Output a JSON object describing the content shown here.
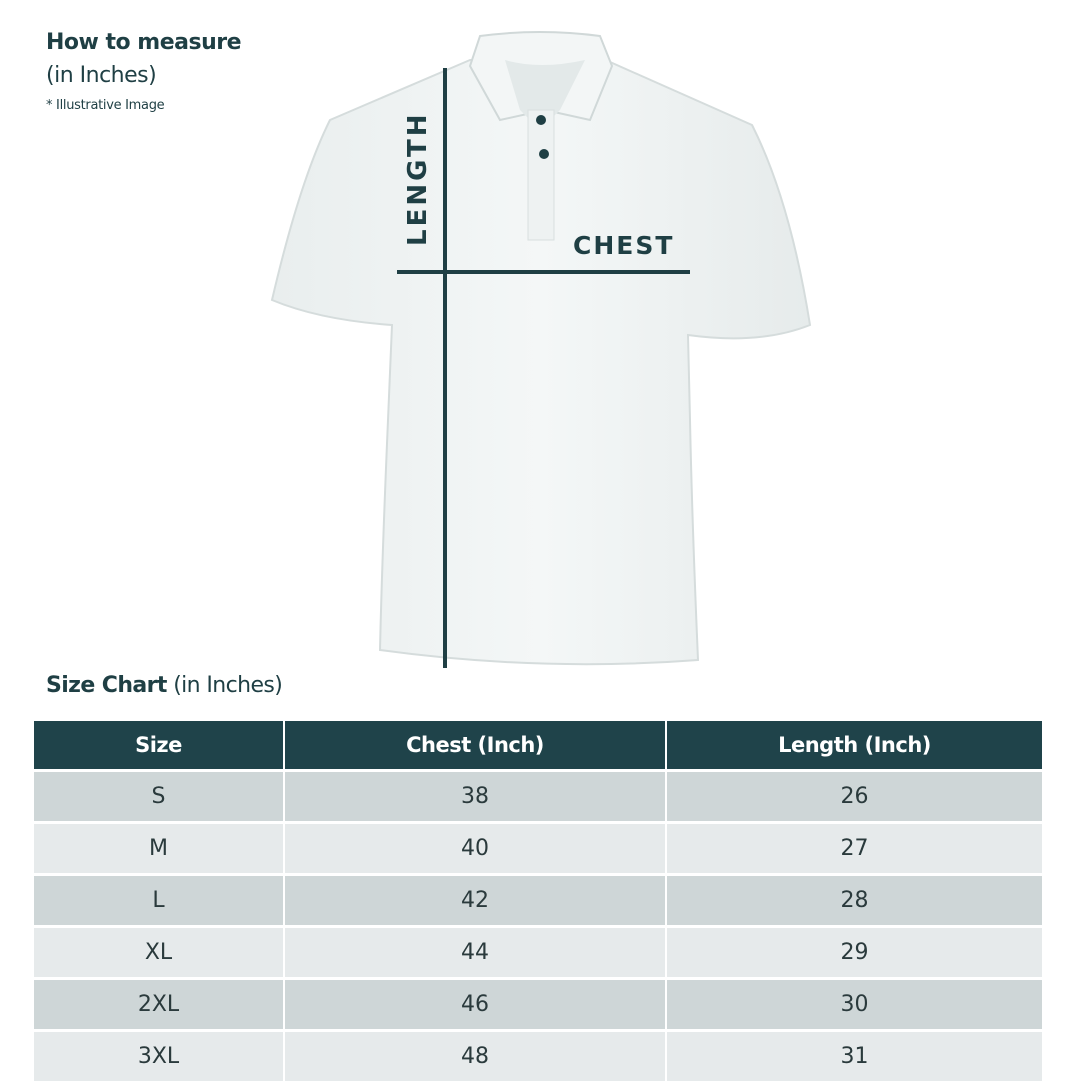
{
  "header": {
    "title": "How to measure",
    "subtitle": "(in Inches)",
    "note": "* Illustrative Image"
  },
  "illustration": {
    "length_label": "LENGTH",
    "chest_label": "CHEST",
    "line_color": "#1f3f44"
  },
  "size_chart": {
    "title_bold": "Size Chart",
    "title_rest": " (in Inches)",
    "columns": [
      "Size",
      "Chest (Inch)",
      "Length (Inch)"
    ],
    "rows": [
      [
        "S",
        "38",
        "26"
      ],
      [
        "M",
        "40",
        "27"
      ],
      [
        "L",
        "42",
        "28"
      ],
      [
        "XL",
        "44",
        "29"
      ],
      [
        "2XL",
        "46",
        "30"
      ],
      [
        "3XL",
        "48",
        "31"
      ]
    ],
    "header_color": "#1f434a",
    "row_colors": [
      "#ced6d7",
      "#e6eaeb"
    ]
  }
}
